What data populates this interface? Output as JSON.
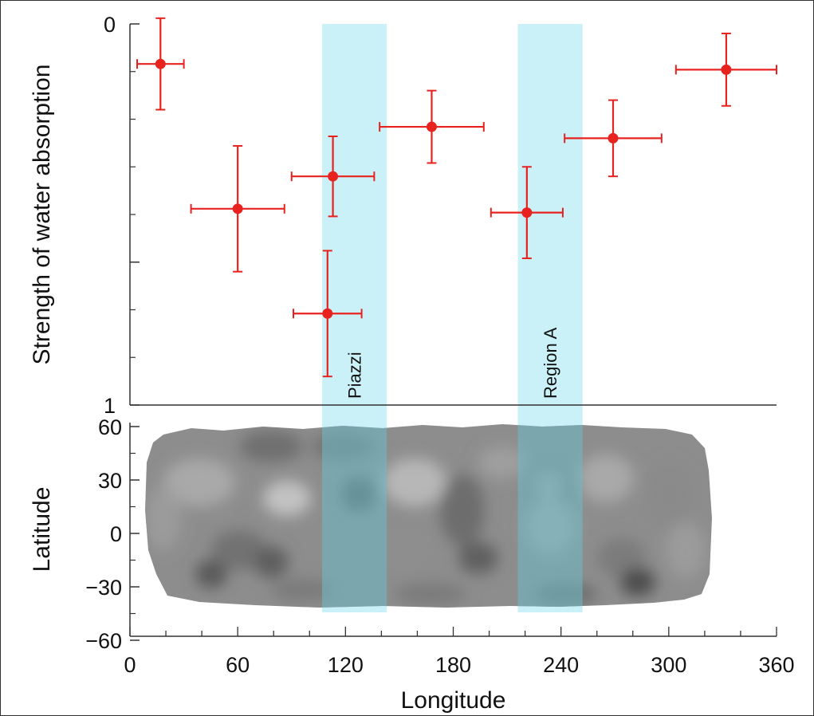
{
  "chart_data": [
    {
      "type": "scatter",
      "panel": "top",
      "ylabel": "Strength of water absorption",
      "ylim": [
        0,
        1
      ],
      "y_inverted": true,
      "y_tick_labels": [
        "0",
        "1"
      ],
      "xlim": [
        0,
        360
      ],
      "error_bars": true,
      "marker_color": "#e8231f",
      "points": [
        {
          "x": 17,
          "y": 0.105,
          "x_err": 13,
          "y_err": 0.12
        },
        {
          "x": 60,
          "y": 0.485,
          "x_err": 26,
          "y_err": 0.165
        },
        {
          "x": 113,
          "y": 0.4,
          "x_err": 23,
          "y_err": 0.105
        },
        {
          "x": 110,
          "y": 0.76,
          "x_err": 19,
          "y_err": 0.165
        },
        {
          "x": 168,
          "y": 0.27,
          "x_err": 29,
          "y_err": 0.095
        },
        {
          "x": 221,
          "y": 0.495,
          "x_err": 20,
          "y_err": 0.12
        },
        {
          "x": 269,
          "y": 0.3,
          "x_err": 27,
          "y_err": 0.1
        },
        {
          "x": 332,
          "y": 0.12,
          "x_err": 28,
          "y_err": 0.095
        }
      ],
      "bands": [
        {
          "label": "Piazzi",
          "x_range": [
            107,
            143
          ]
        },
        {
          "label": "Region A",
          "x_range": [
            216,
            252
          ]
        }
      ],
      "band_color": "#c9f1f7"
    },
    {
      "type": "heatmap",
      "panel": "bottom",
      "xlabel": "Longitude",
      "ylabel": "Latitude",
      "xlim": [
        0,
        360
      ],
      "ylim": [
        -60,
        60
      ],
      "x_tick_labels": [
        "0",
        "60",
        "120",
        "180",
        "240",
        "300",
        "360"
      ],
      "y_tick_labels": [
        "60",
        "30",
        "0",
        "−30",
        "−60"
      ],
      "description_colors": {
        "map": "#8e8e8e",
        "band_overlay": "#6fbcc8"
      }
    }
  ]
}
